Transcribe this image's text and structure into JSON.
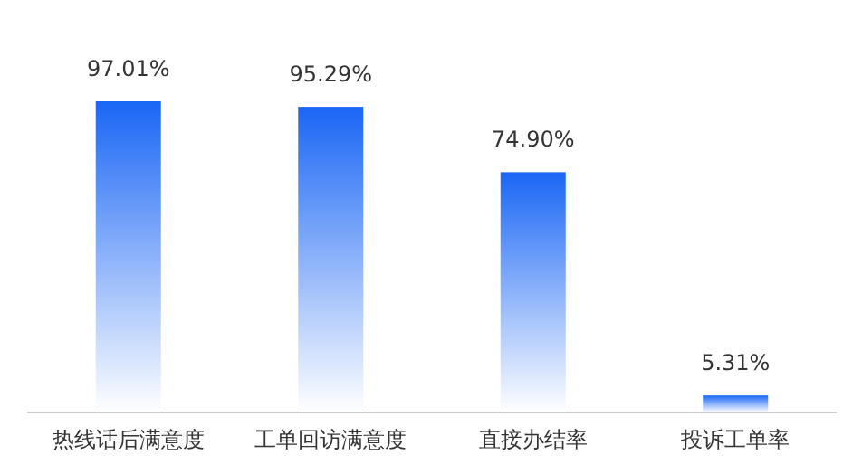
{
  "chart_data": {
    "type": "bar",
    "categories": [
      "热线话后满意度",
      "工单回访满意度",
      "直接办结率",
      "投诉工单率"
    ],
    "values": [
      97.01,
      95.29,
      74.9,
      5.31
    ],
    "value_labels": [
      "97.01%",
      "95.29%",
      "74.90%",
      "5.31%"
    ],
    "color": "#1a66f5"
  }
}
